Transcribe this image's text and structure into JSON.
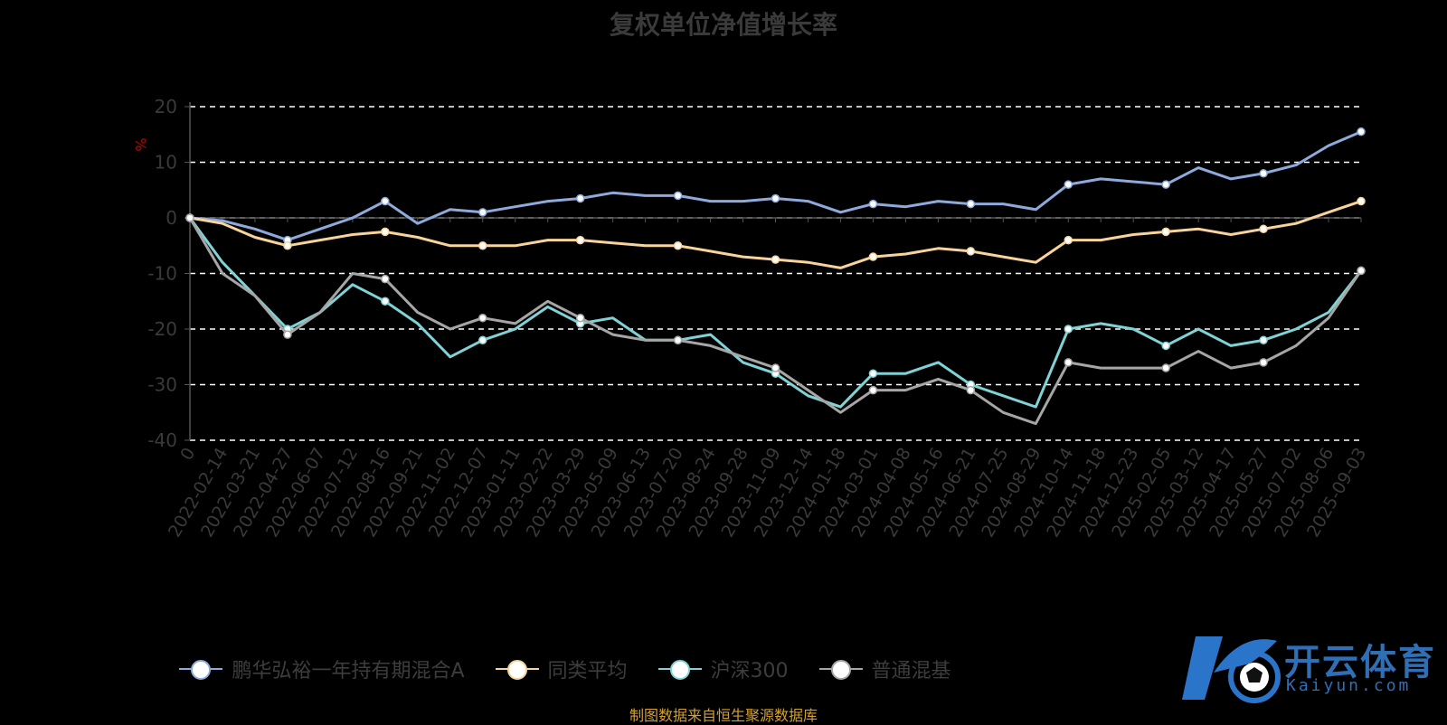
{
  "chart_data": {
    "type": "line",
    "title": "复权单位净值增长率",
    "ylabel": "%",
    "xlabel": "",
    "ylim": [
      -40,
      20
    ],
    "yticks": [
      20,
      10,
      0,
      -10,
      -20,
      -30,
      -40
    ],
    "grid": true,
    "legend_position": "bottom",
    "categories": [
      "0",
      "2022-02-14",
      "2022-03-21",
      "2022-04-27",
      "2022-06-07",
      "2022-07-12",
      "2022-08-16",
      "2022-09-21",
      "2022-11-02",
      "2022-12-07",
      "2023-01-11",
      "2023-02-22",
      "2023-03-29",
      "2023-05-09",
      "2023-06-13",
      "2023-07-20",
      "2023-08-24",
      "2023-09-28",
      "2023-11-09",
      "2023-12-14",
      "2024-01-18",
      "2024-03-01",
      "2024-04-08",
      "2024-05-16",
      "2024-06-21",
      "2024-07-25",
      "2024-08-29",
      "2024-10-14",
      "2024-11-18",
      "2024-12-23",
      "2025-02-05",
      "2025-03-12",
      "2025-04-17",
      "2025-05-27",
      "2025-07-02",
      "2025-08-06",
      "2025-09-03"
    ],
    "series": [
      {
        "name": "鹏华弘裕一年持有期混合A",
        "color": "#8eaadc",
        "values": [
          0,
          -0.5,
          -2,
          -4,
          -2,
          0,
          3,
          -1,
          1.5,
          1,
          2,
          3,
          3.5,
          4.5,
          4,
          4,
          3,
          3,
          3.5,
          3,
          1,
          2.5,
          2,
          3,
          2.5,
          2.5,
          1.5,
          6,
          7,
          6.5,
          6,
          9,
          7,
          8,
          9.5,
          13,
          15.5
        ]
      },
      {
        "name": "同类平均",
        "color": "#f8d49a",
        "values": [
          0,
          -1,
          -3.5,
          -5,
          -4,
          -3,
          -2.5,
          -3.5,
          -5,
          -5,
          -5,
          -4,
          -4,
          -4.5,
          -5,
          -5,
          -6,
          -7,
          -7.5,
          -8,
          -9,
          -7,
          -6.5,
          -5.5,
          -6,
          -7,
          -8,
          -4,
          -4,
          -3,
          -2.5,
          -2,
          -3,
          -2,
          -1,
          1,
          3
        ]
      },
      {
        "name": "沪深300",
        "color": "#7fd3d6",
        "values": [
          0,
          -8,
          -14,
          -20,
          -17,
          -12,
          -15,
          -19,
          -25,
          -22,
          -20,
          -16,
          -19,
          -18,
          -22,
          -22,
          -21,
          -26,
          -28,
          -32,
          -34,
          -28,
          -28,
          -26,
          -30,
          -32,
          -34,
          -20,
          -19,
          -20,
          -23,
          -20,
          -23,
          -22,
          -20,
          -17,
          -9.5
        ]
      },
      {
        "name": "普通混基",
        "color": "#a6a6a6",
        "values": [
          0,
          -10,
          -14,
          -21,
          -17,
          -10,
          -11,
          -17,
          -20,
          -18,
          -19,
          -15,
          -18,
          -21,
          -22,
          -22,
          -23,
          -25,
          -27,
          -31,
          -35,
          -31,
          -31,
          -29,
          -31,
          -35,
          -37,
          -26,
          -27,
          -27,
          -27,
          -24,
          -27,
          -26,
          -23,
          -18,
          -9.5
        ]
      }
    ]
  },
  "source_text": "制图数据来自恒生聚源数据库",
  "watermark": {
    "text": "开云体育",
    "sub": "Kaiyun.com",
    "color": "#2f6fb5"
  }
}
